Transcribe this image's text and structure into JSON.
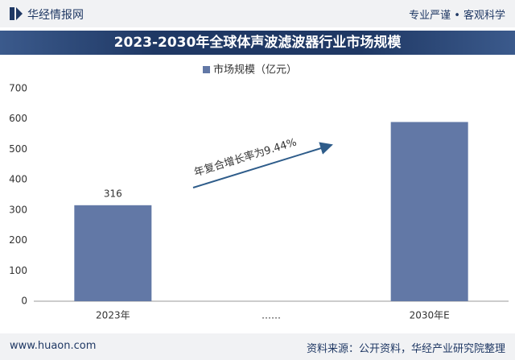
{
  "header": {
    "logo": "华经情报网",
    "slogan": "专业严谨 • 客观科学"
  },
  "chart_data": {
    "type": "bar",
    "title": "2023-2030年全球体声波滤波器行业市场规模",
    "categories": [
      "2023年",
      "……",
      "2030年E"
    ],
    "series": [
      {
        "name": "市场规模（亿元）",
        "color": "#6278a6",
        "values": [
          316,
          null,
          590
        ],
        "value_labels": [
          "316",
          null,
          null
        ]
      }
    ],
    "ylim": [
      0,
      700
    ],
    "yticks": [
      0,
      100,
      200,
      300,
      400,
      500,
      600,
      700
    ],
    "grid": false,
    "annotation": "年复合增长率为9.44%"
  },
  "footer": {
    "website": "www.huaon.com",
    "source": "资料来源：公开资料，华经产业研究院整理"
  }
}
